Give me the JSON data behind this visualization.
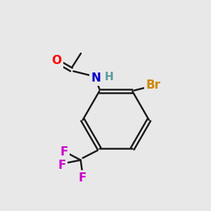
{
  "background_color": "#e8e8e8",
  "bond_color": "#1a1a1a",
  "bond_width": 1.8,
  "atom_colors": {
    "O": "#ff0000",
    "N": "#0000cc",
    "Br": "#cc8800",
    "F": "#cc00cc",
    "C": "#1a1a1a",
    "H": "#5a9a9a"
  },
  "font_size_atoms": 12
}
